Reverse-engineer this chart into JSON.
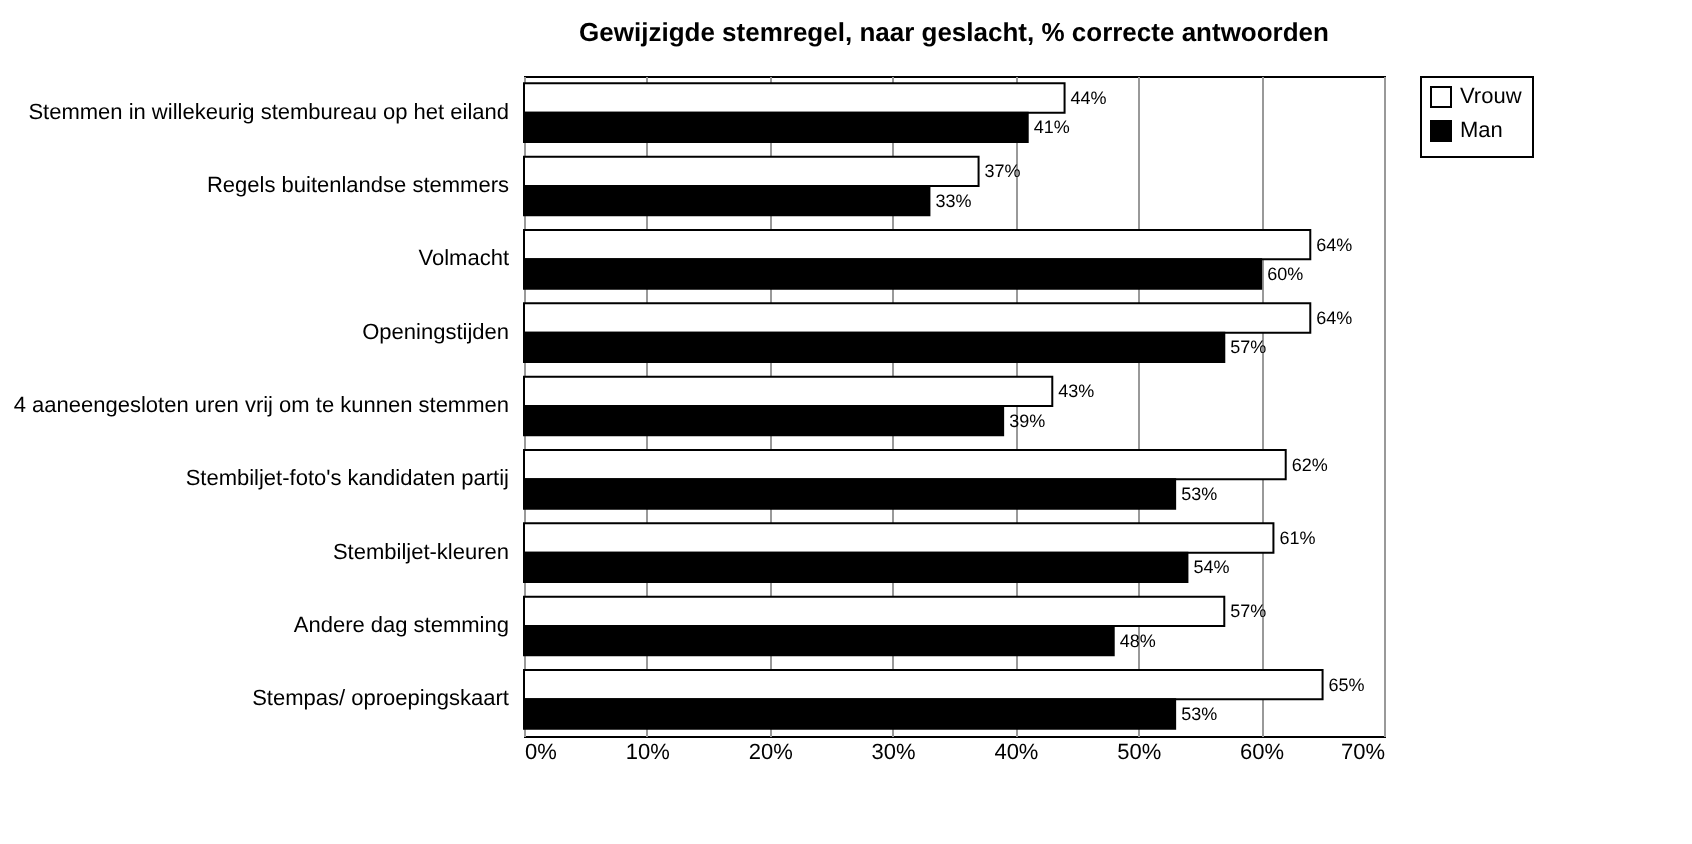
{
  "chart_data": {
    "type": "bar",
    "orientation": "horizontal",
    "title": "Gewijzigde stemregel, naar geslacht, % correcte antwoorden",
    "categories": [
      "Stemmen in willekeurig stembureau op het eiland",
      "Regels buitenlandse stemmers",
      "Volmacht",
      "Openingstijden",
      "4 aaneengesloten uren vrij om te kunnen stemmen",
      "Stembiljet-foto's kandidaten partij",
      "Stembiljet-kleuren",
      "Andere dag stemming",
      "Stempas/ oproepingskaart"
    ],
    "series": [
      {
        "name": "Vrouw",
        "color": "#ffffff",
        "values": [
          44,
          37,
          64,
          64,
          43,
          62,
          61,
          57,
          65
        ],
        "value_labels": [
          "44%",
          "37%",
          "64%",
          "64%",
          "43%",
          "62%",
          "61%",
          "57%",
          "65%"
        ]
      },
      {
        "name": "Man",
        "color": "#000000",
        "values": [
          41,
          33,
          60,
          57,
          39,
          53,
          54,
          48,
          53
        ],
        "value_labels": [
          "41%",
          "33%",
          "60%",
          "57%",
          "39%",
          "53%",
          "54%",
          "48%",
          "53%"
        ]
      }
    ],
    "xlim": [
      0,
      70
    ],
    "xticks": [
      {
        "value": 0,
        "label": "0%"
      },
      {
        "value": 10,
        "label": "10%"
      },
      {
        "value": 20,
        "label": "20%"
      },
      {
        "value": 30,
        "label": "30%"
      },
      {
        "value": 40,
        "label": "40%"
      },
      {
        "value": 50,
        "label": "50%"
      },
      {
        "value": 60,
        "label": "60%"
      },
      {
        "value": 70,
        "label": "70%"
      }
    ],
    "grid": "x",
    "legend": "right"
  }
}
